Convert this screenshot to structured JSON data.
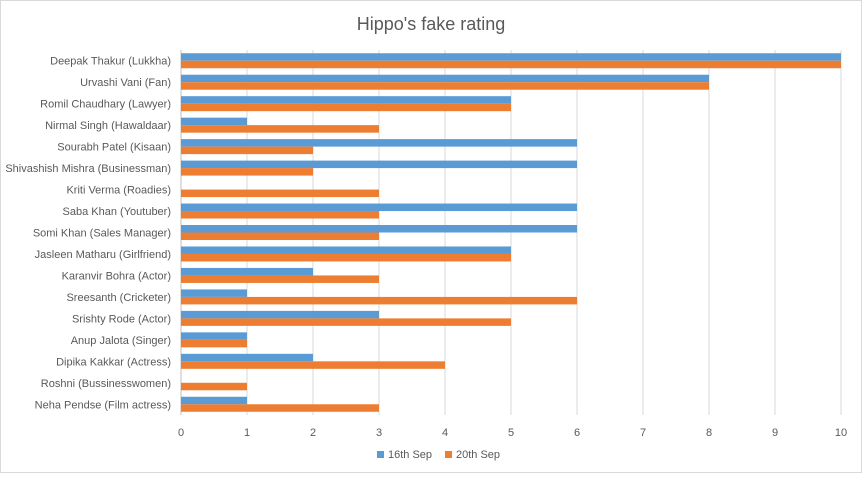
{
  "chart_data": {
    "type": "bar",
    "orientation": "horizontal",
    "title": "Hippo's fake rating",
    "categories": [
      "Deepak Thakur (Lukkha)",
      "Urvashi Vani (Fan)",
      "Romil Chaudhary (Lawyer)",
      "Nirmal Singh (Hawaldaar)",
      "Sourabh Patel (Kisaan)",
      "Shivashish Mishra (Businessman)",
      "Kriti Verma (Roadies)",
      "Saba Khan (Youtuber)",
      "Somi Khan (Sales Manager)",
      "Jasleen Matharu (Girlfriend)",
      "Karanvir Bohra (Actor)",
      "Sreesanth (Cricketer)",
      "Srishty Rode (Actor)",
      "Anup Jalota (Singer)",
      "Dipika Kakkar (Actress)",
      "Roshni (Bussinesswomen)",
      "Neha Pendse (Film actress)"
    ],
    "series": [
      {
        "name": "16th Sep",
        "color": "#5b9bd5",
        "values": [
          10,
          8,
          5,
          1,
          6,
          6,
          0,
          6,
          6,
          5,
          2,
          1,
          3,
          1,
          2,
          0,
          1
        ]
      },
      {
        "name": "20th Sep",
        "color": "#ed7d31",
        "values": [
          10,
          8,
          5,
          3,
          2,
          2,
          3,
          3,
          3,
          5,
          3,
          6,
          5,
          1,
          4,
          1,
          3
        ]
      }
    ],
    "xlim": [
      0,
      10
    ],
    "xticks": [
      "0",
      "1",
      "2",
      "3",
      "4",
      "5",
      "6",
      "7",
      "8",
      "9",
      "10"
    ],
    "grid": true,
    "legend_position": "bottom"
  }
}
